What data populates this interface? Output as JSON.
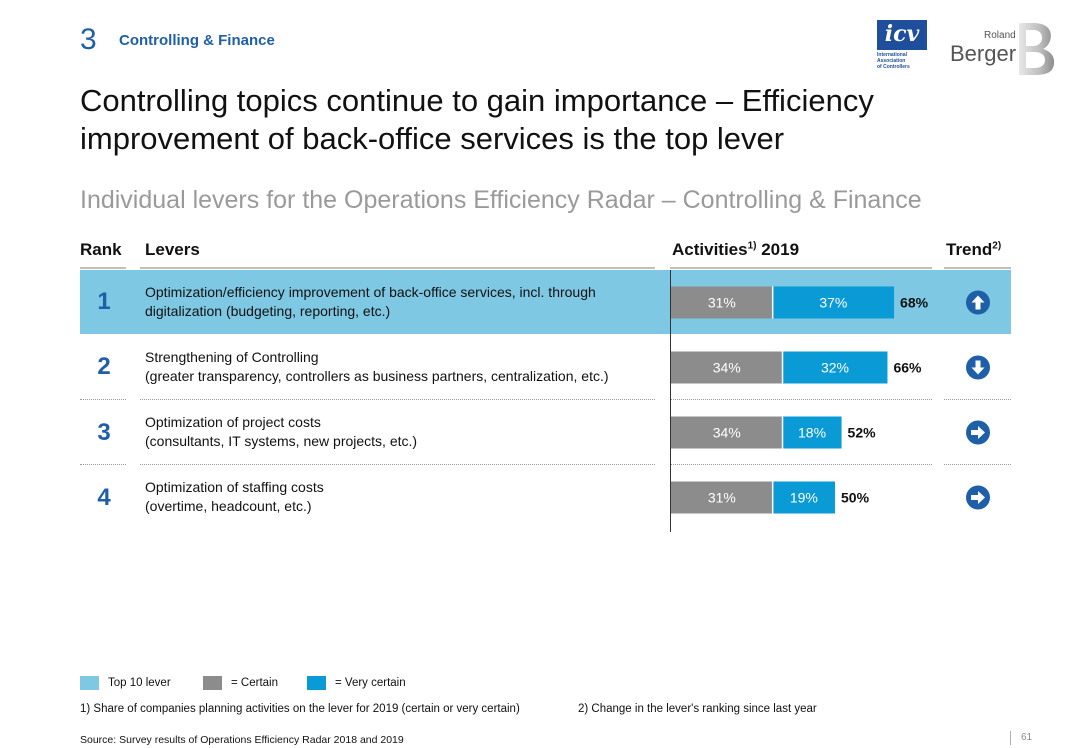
{
  "header": {
    "section_number": "3",
    "section_label": "Controlling & Finance",
    "title_line1": "Controlling topics continue to gain importance – Efficiency",
    "title_line2": "improvement of back-office services is the top lever",
    "subtitle": "Individual levers for the Operations Efficiency Radar – Controlling & Finance"
  },
  "logos": {
    "icv_text": "icv",
    "icv_sub": [
      "International",
      "Association",
      "of Controllers"
    ],
    "rb_small": "Roland",
    "rb_large": "Berger"
  },
  "table": {
    "col_rank": "Rank",
    "col_levers": "Levers",
    "col_activities": "Activities",
    "col_activities_sup": "1)",
    "col_activities_year": " 2019",
    "col_trend": "Trend",
    "col_trend_sup": "2)"
  },
  "chart_data": {
    "type": "bar",
    "stacked": true,
    "orientation": "horizontal",
    "categories": [
      "Optimization/efficiency improvement of back-office services, incl. through digitalization (budgeting, reporting, etc.)",
      "Strengthening of Controlling (greater transparency, controllers as business partners, centralization, etc.)",
      "Optimization of project costs (consultants, IT systems, new projects, etc.)",
      "Optimization of staffing costs (overtime, headcount, etc.)"
    ],
    "rows": [
      {
        "rank": "1",
        "lever_line1": "Optimization/efficiency improvement of back-office services, incl. through",
        "lever_line2": "digitalization (budgeting, reporting, etc.)",
        "certain": 31,
        "very_certain": 37,
        "certain_label": "31%",
        "very_certain_label": "37%",
        "total_label": "68%",
        "trend": "up",
        "top10": true
      },
      {
        "rank": "2",
        "lever_line1": "Strengthening of Controlling",
        "lever_line2": "(greater transparency, controllers as business partners, centralization, etc.)",
        "certain": 34,
        "very_certain": 32,
        "certain_label": "34%",
        "very_certain_label": "32%",
        "total_label": "66%",
        "trend": "down",
        "top10": false
      },
      {
        "rank": "3",
        "lever_line1": "Optimization of project costs",
        "lever_line2": "(consultants, IT systems, new projects, etc.)",
        "certain": 34,
        "very_certain": 18,
        "certain_label": "34%",
        "very_certain_label": "18%",
        "total_label": "52%",
        "trend": "right",
        "top10": false
      },
      {
        "rank": "4",
        "lever_line1": "Optimization of staffing costs",
        "lever_line2": "(overtime, headcount, etc.)",
        "certain": 31,
        "very_certain": 19,
        "certain_label": "31%",
        "very_certain_label": "19%",
        "total_label": "50%",
        "trend": "right",
        "top10": false
      }
    ],
    "series": [
      {
        "name": "= Certain",
        "color": "#8c8c8c"
      },
      {
        "name": "= Very certain",
        "color": "#0a9ad6"
      }
    ],
    "xlim": [
      0,
      70
    ]
  },
  "colors": {
    "top10": "#7ec8e3",
    "certain": "#8c8c8c",
    "very_certain": "#0a9ad6",
    "accent": "#1f5fa8"
  },
  "legend": {
    "top10_label": "Top 10 lever",
    "certain_label": "= Certain",
    "very_certain_label": "= Very certain"
  },
  "footnotes": {
    "note1": "1) Share of companies planning activities on the lever for 2019 (certain or very certain)",
    "note2": "2) Change in the lever's ranking since last year",
    "source": "Source: Survey results of Operations Efficiency Radar 2018 and 2019",
    "page": "61"
  }
}
